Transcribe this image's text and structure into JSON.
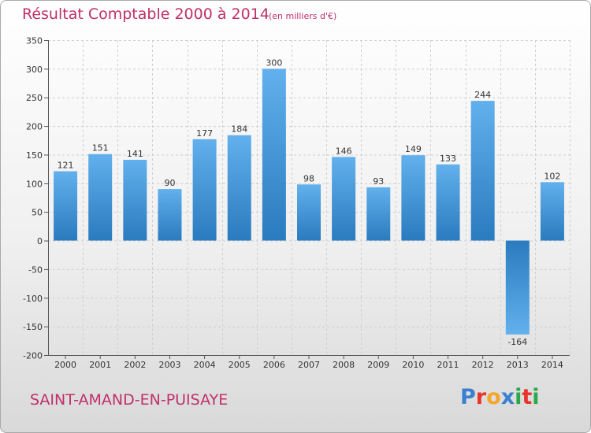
{
  "header": {
    "title": "Résultat Comptable 2000 à 2014",
    "subtitle": "(en milliers d'€)"
  },
  "footer": {
    "commune": "SAINT-AMAND-EN-PUISAYE",
    "logo": {
      "text": "Proxiti",
      "letters": [
        "P",
        "r",
        "o",
        "x",
        "i",
        "t",
        "i"
      ],
      "colors": [
        "#3a7fd0",
        "#e8342a",
        "#f4a62a",
        "#3a7fd0",
        "#2aa84a",
        "#e8342a",
        "#2aa84a"
      ]
    }
  },
  "chart_data": {
    "type": "bar",
    "title": "Résultat Comptable 2000 à 2014",
    "subtitle": "(en milliers d'€)",
    "xlabel": "",
    "ylabel": "",
    "categories": [
      "2000",
      "2001",
      "2002",
      "2003",
      "2004",
      "2005",
      "2006",
      "2007",
      "2008",
      "2009",
      "2010",
      "2011",
      "2012",
      "2013",
      "2014"
    ],
    "values": [
      121,
      151,
      141,
      90,
      177,
      184,
      300,
      98,
      146,
      93,
      149,
      133,
      244,
      -164,
      102
    ],
    "data_labels": [
      "121",
      "151",
      "141",
      "90",
      "177",
      "184",
      "300",
      "98",
      "146",
      "93",
      "149",
      "133",
      "244",
      "-164",
      "102"
    ],
    "ylim": [
      -200,
      350
    ],
    "yticks": [
      350,
      300,
      250,
      200,
      150,
      100,
      50,
      0,
      -50,
      -100,
      -150,
      -200
    ],
    "ytick_labels": [
      "350",
      "300",
      "250",
      "200",
      "150",
      "100",
      "50",
      "0",
      "-50",
      "-100",
      "-150",
      "-200"
    ],
    "grid": true,
    "colors": {
      "bar_light": "#62b0ec",
      "bar_dark": "#2a7bbf",
      "grid": "#cfcfcf",
      "axis": "#555555"
    }
  }
}
